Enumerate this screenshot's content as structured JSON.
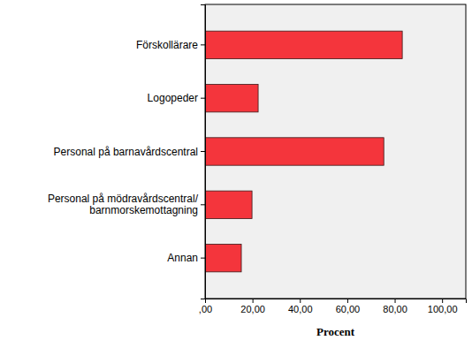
{
  "chart_data": {
    "type": "bar",
    "orientation": "horizontal",
    "xlabel": "Procent",
    "categories": [
      "Förskollärare",
      "Logopeder",
      "Personal på barnavårdscentral",
      "Personal på mödravårdscentral/\nbarnmorskemottagning",
      "Annan"
    ],
    "values": [
      83.2,
      22.4,
      75.4,
      19.8,
      15.3
    ],
    "color": "#f4353c",
    "xlim": [
      0,
      110
    ],
    "xticks": [
      {
        "value": 0,
        "label": ",00"
      },
      {
        "value": 20,
        "label": "20,00"
      },
      {
        "value": 40,
        "label": "40,00"
      },
      {
        "value": 60,
        "label": "60,00"
      },
      {
        "value": 80,
        "label": "80,00"
      },
      {
        "value": 100,
        "label": "100,00"
      }
    ],
    "grid": false
  }
}
